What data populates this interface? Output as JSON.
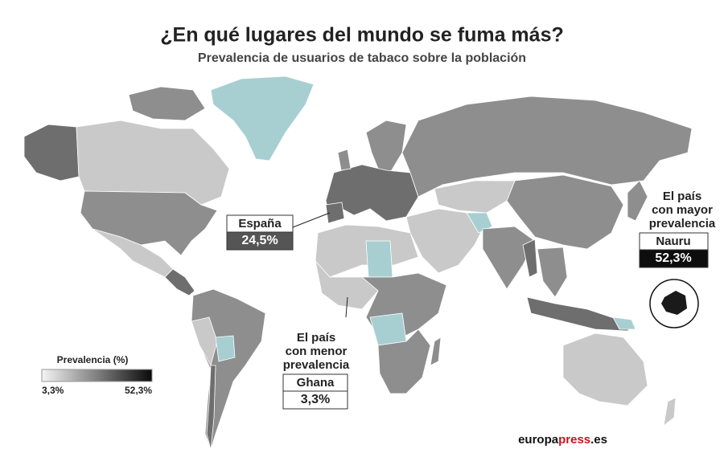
{
  "header": {
    "title": "¿En qué lugares del mundo se fuma más?",
    "subtitle": "Prevalencia de usuarios de tabaco sobre la población"
  },
  "callouts": [
    {
      "country": "España",
      "value": "24,5%"
    },
    {
      "caption": [
        "El país",
        "con menor",
        "prevalencia"
      ],
      "country": "Ghana",
      "value": "3,3%"
    },
    {
      "caption": [
        "El país",
        "con mayor",
        "prevalencia"
      ],
      "country": "Nauru",
      "value": "52,3%"
    }
  ],
  "legend": {
    "title": "Prevalencia (%)",
    "min": "3,3%",
    "max": "52,3%"
  },
  "source": [
    "europa",
    "press",
    ".es"
  ]
}
